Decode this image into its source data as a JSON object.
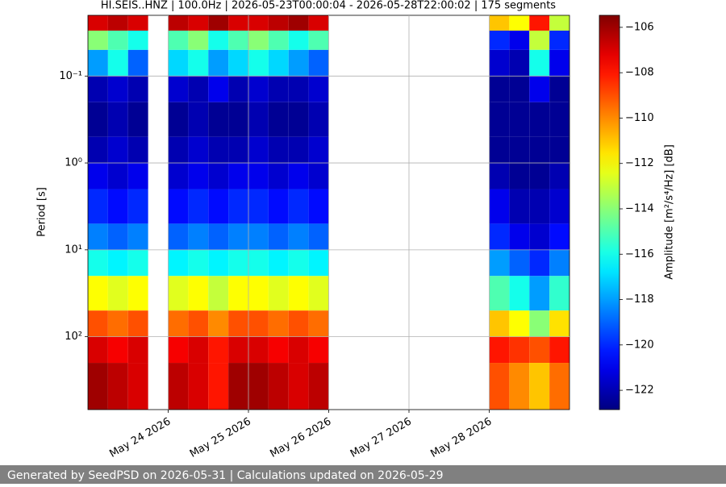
{
  "chart_data": {
    "type": "spectrogram",
    "title": "HI.SEIS..HNZ | 100.0Hz | 2026-05-23T00:00:04 - 2026-05-28T22:00:02 | 175 segments",
    "y_label": "Period [s]",
    "colorbar_label": "Amplitude [m²/s⁴/Hz] [dB]",
    "footer": "Generated by SeedPSD on 2026-05-31 | Calculations updated on 2026-05-29",
    "colormap": "jet",
    "grid": true,
    "y_scale": "log",
    "y_inverted": true,
    "xlim": [
      "2026-05-23T00:00",
      "2026-05-29T00:00"
    ],
    "xticks": [
      {
        "value": "2026-05-24T00:00",
        "label": "May 24 2026"
      },
      {
        "value": "2026-05-25T00:00",
        "label": "May 25 2026"
      },
      {
        "value": "2026-05-26T00:00",
        "label": "May 26 2026"
      },
      {
        "value": "2026-05-27T00:00",
        "label": "May 27 2026"
      },
      {
        "value": "2026-05-28T00:00",
        "label": "May 28 2026"
      }
    ],
    "ylim": [
      0.02,
      690
    ],
    "yticks": [
      {
        "value": 0.1,
        "label": "10⁻¹"
      },
      {
        "value": 1,
        "label": "10⁰"
      },
      {
        "value": 10,
        "label": "10¹"
      },
      {
        "value": 100,
        "label": "10²"
      }
    ],
    "clim": [
      -122.85,
      -105.47
    ],
    "cticks": [
      {
        "value": -106,
        "label": "−106"
      },
      {
        "value": -108,
        "label": "−108"
      },
      {
        "value": -110,
        "label": "−110"
      },
      {
        "value": -112,
        "label": "−112"
      },
      {
        "value": -114,
        "label": "−114"
      },
      {
        "value": -116,
        "label": "−116"
      },
      {
        "value": -118,
        "label": "−118"
      },
      {
        "value": -120,
        "label": "−120"
      },
      {
        "value": -122,
        "label": "−122"
      }
    ],
    "x": [
      "2026-05-23T00:00",
      "2026-05-23T06:00",
      "2026-05-23T12:00",
      "2026-05-23T18:00",
      "2026-05-24T00:00",
      "2026-05-24T06:00",
      "2026-05-24T12:00",
      "2026-05-24T18:00",
      "2026-05-25T00:00",
      "2026-05-25T06:00",
      "2026-05-25T12:00",
      "2026-05-25T18:00",
      "2026-05-26T00:00",
      "2026-05-26T06:00",
      "2026-05-26T12:00",
      "2026-05-26T18:00",
      "2026-05-27T00:00",
      "2026-05-27T06:00",
      "2026-05-27T12:00",
      "2026-05-27T18:00",
      "2026-05-28T00:00",
      "2026-05-28T06:00",
      "2026-05-28T12:00",
      "2026-05-28T18:00",
      "2026-05-29T00:00"
    ],
    "y": [
      0.02,
      0.03,
      0.05,
      0.1,
      0.2,
      0.5,
      1,
      2,
      5,
      10,
      20,
      50,
      100,
      200,
      690
    ],
    "values": [
      [
        -107,
        -106.5,
        -107,
        null,
        -106.5,
        -107,
        -106,
        -107,
        -107,
        -106.5,
        -106,
        -107,
        null,
        null,
        null,
        null,
        null,
        null,
        null,
        null,
        -111,
        -112,
        -108,
        -113
      ],
      [
        -114,
        -115,
        -116,
        null,
        -115,
        -114,
        -116,
        -115,
        -114,
        -115,
        -116,
        -115,
        null,
        null,
        null,
        null,
        null,
        null,
        null,
        null,
        -120,
        -121,
        -113,
        -120
      ],
      [
        -118,
        -116,
        -119,
        null,
        -117,
        -116,
        -118,
        -117,
        -116,
        -117,
        -118,
        -119,
        null,
        null,
        null,
        null,
        null,
        null,
        null,
        null,
        -121.5,
        -122,
        -116,
        -121
      ],
      [
        -122,
        -121.5,
        -122,
        null,
        -121.5,
        -122,
        -121,
        -122,
        -121.5,
        -122,
        -122,
        -121.5,
        null,
        null,
        null,
        null,
        null,
        null,
        null,
        null,
        -122.5,
        -122.5,
        -121,
        -122.5
      ],
      [
        -122.5,
        -122,
        -122.5,
        null,
        -122.5,
        -122,
        -122.5,
        -122.5,
        -122,
        -122.5,
        -122.5,
        -122,
        null,
        null,
        null,
        null,
        null,
        null,
        null,
        null,
        -122.5,
        -122.5,
        -122.5,
        -122.5
      ],
      [
        -122,
        -121.5,
        -122,
        null,
        -122,
        -121.5,
        -122,
        -122,
        -121.5,
        -122,
        -122,
        -121.5,
        null,
        null,
        null,
        null,
        null,
        null,
        null,
        null,
        -122.5,
        -122.5,
        -122.5,
        -122.5
      ],
      [
        -121,
        -121.5,
        -121,
        null,
        -121.5,
        -121,
        -121.5,
        -121,
        -121,
        -121.5,
        -121,
        -121.5,
        null,
        null,
        null,
        null,
        null,
        null,
        null,
        null,
        -122,
        -122.5,
        -122.5,
        -122
      ],
      [
        -120,
        -120.5,
        -120,
        null,
        -120.5,
        -120,
        -120.5,
        -120,
        -120,
        -120.5,
        -120,
        -120.5,
        null,
        null,
        null,
        null,
        null,
        null,
        null,
        null,
        -121,
        -122,
        -122,
        -121.5
      ],
      [
        -118.5,
        -119,
        -118.5,
        null,
        -119,
        -118.5,
        -119,
        -118.5,
        -118.5,
        -119,
        -118.5,
        -119,
        null,
        null,
        null,
        null,
        null,
        null,
        null,
        null,
        -120,
        -121,
        -121.5,
        -120.5
      ],
      [
        -116,
        -116.5,
        -116,
        null,
        -116.5,
        -116,
        -116.5,
        -116,
        -116,
        -116.5,
        -116,
        -116.5,
        null,
        null,
        null,
        null,
        null,
        null,
        null,
        null,
        -118,
        -119,
        -120,
        -118.5
      ],
      [
        -112,
        -112.5,
        -112,
        null,
        -112.5,
        -112,
        -113,
        -112,
        -112,
        -112.5,
        -112,
        -112.5,
        null,
        null,
        null,
        null,
        null,
        null,
        null,
        null,
        -115,
        -116,
        -118,
        -115.5
      ],
      [
        -109,
        -109.5,
        -109,
        null,
        -109.5,
        -109,
        -110,
        -109,
        -109,
        -109.5,
        -109,
        -109.5,
        null,
        null,
        null,
        null,
        null,
        null,
        null,
        null,
        -111,
        -112,
        -114,
        -111.5
      ],
      [
        -107,
        -107.5,
        -107,
        null,
        -107.5,
        -107,
        -108,
        -107,
        -107,
        -107.5,
        -107,
        -107.5,
        null,
        null,
        null,
        null,
        null,
        null,
        null,
        null,
        -108,
        -108.5,
        -109,
        -108
      ],
      [
        -106,
        -106.5,
        -107,
        null,
        -106.5,
        -107,
        -108,
        -106,
        -106,
        -106.5,
        -107,
        -106.5,
        null,
        null,
        null,
        null,
        null,
        null,
        null,
        null,
        -109,
        -110,
        -111,
        -109.5
      ]
    ]
  }
}
